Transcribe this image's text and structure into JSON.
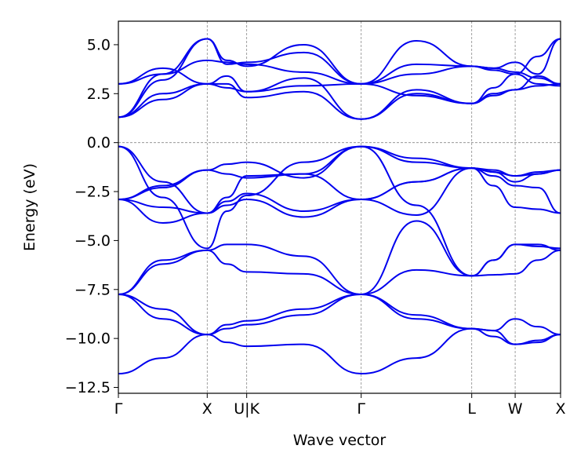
{
  "chart_data": {
    "type": "line",
    "title": "",
    "xlabel": "Wave vector",
    "ylabel": "Energy (eV)",
    "ylim": [
      -12.8,
      6.2
    ],
    "xlim": [
      0,
      2.24
    ],
    "y_ticks": [
      {
        "value": 5.0,
        "label": "5.0"
      },
      {
        "value": 2.5,
        "label": "2.5"
      },
      {
        "value": 0.0,
        "label": "0.0"
      },
      {
        "value": -2.5,
        "label": "−2.5"
      },
      {
        "value": -5.0,
        "label": "−5.0"
      },
      {
        "value": -7.5,
        "label": "−7.5"
      },
      {
        "value": -10.0,
        "label": "−10.0"
      },
      {
        "value": -12.5,
        "label": "−12.5"
      }
    ],
    "high_symmetry_points": [
      {
        "label": "Γ",
        "position": 0.0
      },
      {
        "label": "X",
        "position": 0.45
      },
      {
        "label": "U|K",
        "position": 0.65
      },
      {
        "label": "Γ",
        "position": 1.23
      },
      {
        "label": "L",
        "position": 1.79
      },
      {
        "label": "W",
        "position": 2.01
      },
      {
        "label": "X",
        "position": 2.24
      }
    ],
    "fermi_level": 0.0,
    "line_color": "#0000ee",
    "grid_color": "#888888",
    "series": [
      {
        "name": "band-1",
        "x": [
          0,
          0.225,
          0.45,
          0.55,
          0.65,
          0.94,
          1.23,
          1.51,
          1.79,
          1.9,
          2.01,
          2.125,
          2.24
        ],
        "values": [
          -11.8,
          -11.0,
          -9.8,
          -10.2,
          -10.4,
          -10.3,
          -11.8,
          -11.0,
          -9.5,
          -9.9,
          -10.3,
          -10.2,
          -9.8
        ]
      },
      {
        "name": "band-2",
        "x": [
          0,
          0.225,
          0.45,
          0.55,
          0.65,
          0.94,
          1.23,
          1.51,
          1.79,
          1.9,
          2.01,
          2.125,
          2.24
        ],
        "values": [
          -7.75,
          -9.0,
          -9.8,
          -9.5,
          -9.3,
          -8.8,
          -7.75,
          -9.0,
          -9.5,
          -9.6,
          -9.0,
          -9.4,
          -9.8
        ]
      },
      {
        "name": "band-3",
        "x": [
          0,
          0.225,
          0.45,
          0.55,
          0.65,
          0.94,
          1.23,
          1.51,
          1.79,
          1.9,
          2.01,
          2.125,
          2.24
        ],
        "values": [
          -7.75,
          -8.5,
          -9.8,
          -9.3,
          -9.1,
          -8.5,
          -7.75,
          -8.8,
          -9.5,
          -9.6,
          -10.3,
          -10.1,
          -9.8
        ]
      },
      {
        "name": "band-4",
        "x": [
          0,
          0.225,
          0.45,
          0.55,
          0.65,
          0.94,
          1.23,
          1.51,
          1.79,
          1.9,
          2.01,
          2.125,
          2.24
        ],
        "values": [
          -7.75,
          -6.2,
          -5.5,
          -6.2,
          -6.6,
          -6.7,
          -7.75,
          -6.5,
          -6.8,
          -6.75,
          -6.7,
          -6.0,
          -5.5
        ]
      },
      {
        "name": "band-5",
        "x": [
          0,
          0.225,
          0.45,
          0.55,
          0.65,
          0.94,
          1.23,
          1.51,
          1.79,
          1.9,
          2.01,
          2.125,
          2.24
        ],
        "values": [
          -7.75,
          -6.0,
          -5.5,
          -5.2,
          -5.2,
          -5.8,
          -7.75,
          -4.0,
          -6.8,
          -6.0,
          -5.2,
          -5.2,
          -5.5
        ]
      },
      {
        "name": "band-6",
        "x": [
          0,
          0.225,
          0.45,
          0.55,
          0.65,
          0.94,
          1.23,
          1.51,
          1.79,
          1.9,
          2.01,
          2.125,
          2.24
        ],
        "values": [
          -0.2,
          -2.8,
          -5.4,
          -3.5,
          -2.7,
          -1.0,
          -0.2,
          -3.2,
          -6.8,
          -6.0,
          -5.2,
          -5.3,
          -5.4
        ]
      },
      {
        "name": "band-7",
        "x": [
          0,
          0.225,
          0.45,
          0.55,
          0.65,
          0.94,
          1.23,
          1.51,
          1.79,
          1.9,
          2.01,
          2.125,
          2.24
        ],
        "values": [
          -0.2,
          -2.0,
          -3.6,
          -3.0,
          -2.6,
          -3.5,
          -2.9,
          -3.7,
          -1.3,
          -2.2,
          -3.3,
          -3.4,
          -3.6
        ]
      },
      {
        "name": "band-8",
        "x": [
          0,
          0.225,
          0.45,
          0.55,
          0.65,
          0.94,
          1.23,
          1.51,
          1.79,
          1.9,
          2.01,
          2.125,
          2.24
        ],
        "values": [
          -2.9,
          -4.1,
          -3.6,
          -2.8,
          -1.7,
          -1.6,
          -0.2,
          -0.8,
          -1.3,
          -1.7,
          -2.2,
          -2.3,
          -3.6
        ]
      },
      {
        "name": "band-9",
        "x": [
          0,
          0.225,
          0.45,
          0.55,
          0.65,
          0.94,
          1.23,
          1.51,
          1.79,
          1.9,
          2.01,
          2.125,
          2.24
        ],
        "values": [
          -2.9,
          -3.3,
          -3.6,
          -3.2,
          -2.9,
          -3.8,
          -2.9,
          -2.0,
          -1.3,
          -1.5,
          -2.0,
          -1.6,
          -1.4
        ]
      },
      {
        "name": "band-10",
        "x": [
          0,
          0.225,
          0.45,
          0.55,
          0.65,
          0.94,
          1.23,
          1.51,
          1.79,
          1.9,
          2.01,
          2.125,
          2.24
        ],
        "values": [
          -2.9,
          -2.3,
          -1.4,
          -1.1,
          -1.0,
          -1.8,
          -0.2,
          -1.0,
          -1.3,
          -1.4,
          -1.7,
          -1.5,
          -1.4
        ]
      },
      {
        "name": "band-11",
        "x": [
          0,
          0.225,
          0.45,
          0.55,
          0.65,
          0.94,
          1.23,
          1.51,
          1.79,
          1.9,
          2.01,
          2.125,
          2.24
        ],
        "values": [
          -2.9,
          -2.2,
          -1.4,
          -1.6,
          -1.8,
          -1.6,
          -2.9,
          -2.0,
          -1.3,
          -1.5,
          -1.7,
          -1.6,
          -1.4
        ]
      },
      {
        "name": "band-12",
        "x": [
          0,
          0.225,
          0.45,
          0.55,
          0.65,
          0.94,
          1.23,
          1.51,
          1.79,
          1.9,
          2.01,
          2.125,
          2.24
        ],
        "values": [
          1.3,
          3.5,
          5.3,
          4.2,
          3.9,
          5.0,
          3.0,
          5.2,
          3.9,
          3.8,
          4.1,
          3.5,
          5.3
        ]
      },
      {
        "name": "band-13",
        "x": [
          0,
          0.225,
          0.45,
          0.55,
          0.65,
          0.94,
          1.23,
          1.51,
          1.79,
          1.9,
          2.01,
          2.125,
          2.24
        ],
        "values": [
          1.3,
          3.2,
          5.3,
          4.0,
          4.1,
          4.6,
          3.0,
          4.0,
          3.9,
          3.7,
          3.5,
          4.4,
          5.3
        ]
      },
      {
        "name": "band-14",
        "x": [
          0,
          0.225,
          0.45,
          0.55,
          0.65,
          0.94,
          1.23,
          1.51,
          1.79,
          1.9,
          2.01,
          2.125,
          2.24
        ],
        "values": [
          1.3,
          2.5,
          3.0,
          3.4,
          2.6,
          3.3,
          1.2,
          2.5,
          2.0,
          2.5,
          2.7,
          3.4,
          3.0
        ]
      },
      {
        "name": "band-15",
        "x": [
          0,
          0.225,
          0.45,
          0.55,
          0.65,
          0.94,
          1.23,
          1.51,
          1.79,
          1.9,
          2.01,
          2.125,
          2.24
        ],
        "values": [
          1.3,
          2.2,
          3.0,
          3.0,
          2.3,
          2.6,
          1.2,
          2.7,
          2.0,
          2.8,
          3.5,
          3.0,
          2.9
        ]
      },
      {
        "name": "band-16",
        "x": [
          0,
          0.225,
          0.45,
          0.55,
          0.65,
          0.94,
          1.23,
          1.51,
          1.79,
          1.9,
          2.01,
          2.125,
          2.24
        ],
        "values": [
          3.0,
          3.8,
          3.0,
          2.8,
          2.6,
          2.9,
          3.0,
          2.4,
          2.0,
          2.4,
          2.7,
          2.9,
          3.0
        ]
      },
      {
        "name": "band-17",
        "x": [
          0,
          0.225,
          0.45,
          0.55,
          0.65,
          0.94,
          1.23,
          1.51,
          1.79,
          1.9,
          2.01,
          2.125,
          2.24
        ],
        "values": [
          3.0,
          3.5,
          4.2,
          4.1,
          4.0,
          3.6,
          3.0,
          3.5,
          3.9,
          3.8,
          3.6,
          3.3,
          3.0
        ]
      }
    ]
  }
}
